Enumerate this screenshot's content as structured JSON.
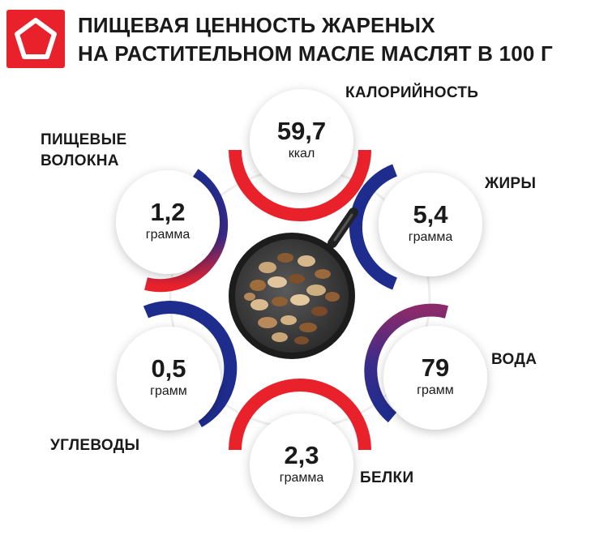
{
  "header": {
    "title_line1": "ПИЩЕВАЯ ЦЕННОСТЬ ЖАРЕНЫХ",
    "title_line2": "НА РАСТИТЕЛЬНОМ МАСЛЕ МАСЛЯТ В 100 Г",
    "logo_icon": "pentagon-logo-icon",
    "logo_color": "#e8212b"
  },
  "colors": {
    "red": "#e8212b",
    "blue": "#1e2c8e",
    "purple": "#8a2a6a"
  },
  "center_image": "frying-pan-with-mushrooms",
  "nutrients": {
    "calories": {
      "label": "КАЛОРИЙНОСТЬ",
      "value": "59,7",
      "unit": "ккал"
    },
    "fats": {
      "label": "ЖИРЫ",
      "value": "5,4",
      "unit": "грамма"
    },
    "water": {
      "label": "ВОДА",
      "value": "79",
      "unit": "грамм"
    },
    "proteins": {
      "label": "БЕЛКИ",
      "value": "2,3",
      "unit": "грамма"
    },
    "carbs": {
      "label": "УГЛЕВОДЫ",
      "value": "0,5",
      "unit": "грамм"
    },
    "fiber": {
      "label_line1": "ПИЩЕВЫЕ",
      "label_line2": "ВОЛОКНА",
      "value": "1,2",
      "unit": "грамма"
    }
  }
}
